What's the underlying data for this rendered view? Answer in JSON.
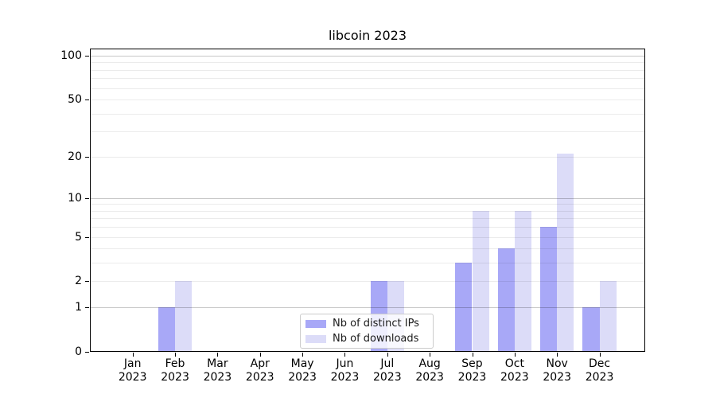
{
  "chart_data": {
    "type": "bar",
    "title": "libcoin 2023",
    "categories": [
      "Jan 2023",
      "Feb 2023",
      "Mar 2023",
      "Apr 2023",
      "May 2023",
      "Jun 2023",
      "Jul 2023",
      "Aug 2023",
      "Sep 2023",
      "Oct 2023",
      "Nov 2023",
      "Dec 2023"
    ],
    "series": [
      {
        "name": "Nb of distinct IPs",
        "color": "#a8a8f7",
        "values": [
          0,
          1,
          0,
          0,
          0,
          0,
          2,
          0,
          3,
          4,
          6,
          1
        ]
      },
      {
        "name": "Nb of downloads",
        "color": "#dcdcf8",
        "values": [
          0,
          2,
          0,
          0,
          0,
          0,
          2,
          0,
          8,
          8,
          21,
          2
        ]
      }
    ],
    "xlabel": "",
    "ylabel": "",
    "yscale": "log1p",
    "ylim": [
      0,
      112
    ],
    "y_ticks": [
      0,
      1,
      2,
      5,
      10,
      20,
      50,
      100
    ],
    "y_gridlines_major": [
      1,
      10,
      100
    ],
    "y_gridlines_minor": [
      2,
      3,
      4,
      5,
      6,
      7,
      8,
      9,
      20,
      30,
      40,
      50,
      60,
      70,
      80,
      90
    ],
    "grid": true,
    "legend_position": "inside lower center"
  },
  "colors": {
    "grid_minor": "#ececec",
    "grid_major": "#c7c7c7",
    "axis": "#000000",
    "background": "#ffffff"
  }
}
